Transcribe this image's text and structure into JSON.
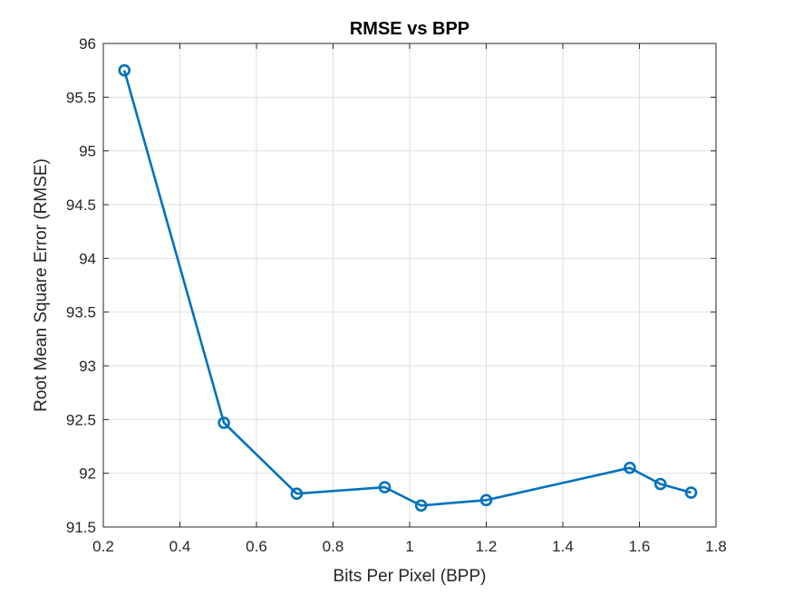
{
  "chart_data": {
    "type": "line",
    "title": "RMSE vs BPP",
    "xlabel": "Bits Per Pixel (BPP)",
    "ylabel": "Root Mean Square Error (RMSE)",
    "xlim": [
      0.2,
      1.8
    ],
    "ylim": [
      91.5,
      96
    ],
    "xticks": [
      0.2,
      0.4,
      0.6,
      0.8,
      1,
      1.2,
      1.4,
      1.6,
      1.8
    ],
    "xtick_labels": [
      "0.2",
      "0.4",
      "0.6",
      "0.8",
      "1",
      "1.2",
      "1.4",
      "1.6",
      "1.8"
    ],
    "yticks": [
      91.5,
      92,
      92.5,
      93,
      93.5,
      94,
      94.5,
      95,
      95.5,
      96
    ],
    "ytick_labels": [
      "91.5",
      "92",
      "92.5",
      "93",
      "93.5",
      "94",
      "94.5",
      "95",
      "95.5",
      "96"
    ],
    "grid": true,
    "series": [
      {
        "color": "#0072BD",
        "marker": "circle",
        "x": [
          0.255,
          0.515,
          0.705,
          0.935,
          1.03,
          1.2,
          1.575,
          1.655,
          1.735
        ],
        "y": [
          95.75,
          92.47,
          91.81,
          91.87,
          91.7,
          91.75,
          92.05,
          91.9,
          91.82
        ]
      }
    ]
  }
}
